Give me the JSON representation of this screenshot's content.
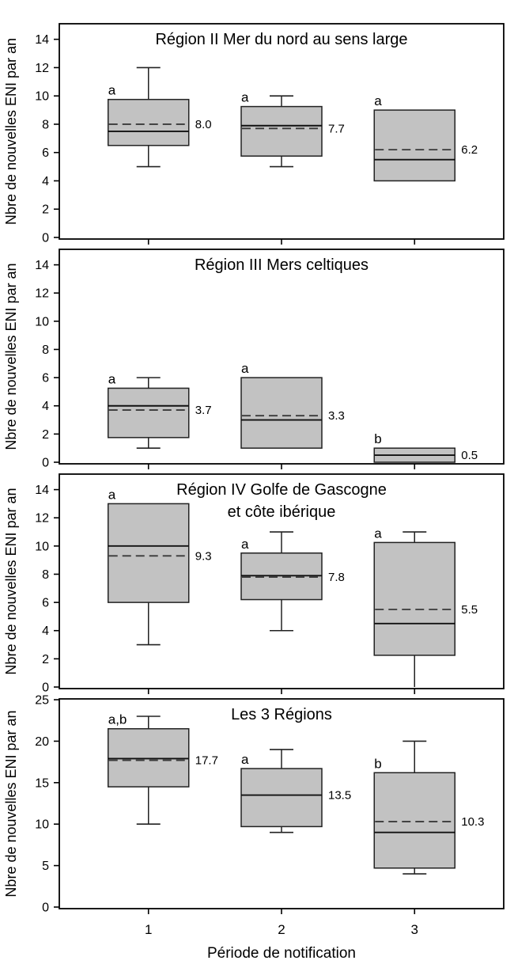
{
  "chart_data": {
    "type": "boxplot",
    "xlabel": "Période de notification",
    "ylabel": "Nbre de nouvelles ENI par an",
    "x_categories": [
      "1",
      "2",
      "3"
    ],
    "legend": "dashed line = mean, solid line = median",
    "style": {
      "background": "#ffffff",
      "box_fill": "#c2c2c2",
      "box_stroke": "#222222",
      "frame": "#000000",
      "median_line": "#111111",
      "mean_line": "#3a3a3a",
      "text": "#000000"
    },
    "panels": [
      {
        "title_lines": [
          "Région II Mer du nord au sens large"
        ],
        "ylim": [
          0,
          15.1
        ],
        "yticks": [
          0,
          2,
          4,
          6,
          8,
          10,
          12,
          14
        ],
        "boxes": [
          {
            "x": 1,
            "letter": "a",
            "whisker_low": 5,
            "q1": 6.5,
            "median": 7.5,
            "q3": 9.75,
            "whisker_high": 12,
            "mean": 8.0,
            "label": "8.0"
          },
          {
            "x": 2,
            "letter": "a",
            "whisker_low": 5,
            "q1": 5.75,
            "median": 7.9,
            "q3": 9.25,
            "whisker_high": 10,
            "mean": 7.7,
            "label": "7.7"
          },
          {
            "x": 3,
            "letter": "a",
            "whisker_low": null,
            "q1": 4,
            "median": 5.5,
            "q3": 9,
            "whisker_high": null,
            "mean": 6.2,
            "label": "6.2"
          }
        ]
      },
      {
        "title_lines": [
          "Région III Mers celtiques"
        ],
        "ylim": [
          0,
          15.1
        ],
        "yticks": [
          0,
          2,
          4,
          6,
          8,
          10,
          12,
          14
        ],
        "boxes": [
          {
            "x": 1,
            "letter": "a",
            "whisker_low": 1,
            "q1": 1.75,
            "median": 4.0,
            "q3": 5.25,
            "whisker_high": 6,
            "mean": 3.7,
            "label": "3.7"
          },
          {
            "x": 2,
            "letter": "a",
            "whisker_low": null,
            "q1": 1,
            "median": 3.0,
            "q3": 6,
            "whisker_high": null,
            "mean": 3.3,
            "label": "3.3"
          },
          {
            "x": 3,
            "letter": "b",
            "whisker_low": null,
            "q1": 0,
            "median": 0.5,
            "q3": 1,
            "whisker_high": null,
            "mean": null,
            "label": "0.5"
          }
        ]
      },
      {
        "title_lines": [
          "Région IV Golfe de Gascogne",
          "et côte ibérique"
        ],
        "ylim": [
          0,
          15.1
        ],
        "yticks": [
          0,
          2,
          4,
          6,
          8,
          10,
          12,
          14
        ],
        "boxes": [
          {
            "x": 1,
            "letter": "a",
            "whisker_low": 3,
            "q1": 6,
            "median": 10,
            "q3": 13,
            "whisker_high": null,
            "mean": 9.3,
            "label": "9.3"
          },
          {
            "x": 2,
            "letter": "a",
            "whisker_low": 4,
            "q1": 6.2,
            "median": 7.9,
            "q3": 9.5,
            "whisker_high": 11,
            "mean": 7.8,
            "label": "7.8"
          },
          {
            "x": 3,
            "letter": "a",
            "whisker_low": 0,
            "q1": 2.25,
            "median": 4.5,
            "q3": 10.25,
            "whisker_high": 11,
            "mean": 5.5,
            "label": "5.5"
          }
        ]
      },
      {
        "title_lines": [
          "Les 3 Régions"
        ],
        "ylim": [
          0,
          25.1
        ],
        "yticks": [
          0,
          5,
          10,
          15,
          20,
          25
        ],
        "boxes": [
          {
            "x": 1,
            "letter": "a,b",
            "whisker_low": 10,
            "q1": 14.5,
            "median": 17.9,
            "q3": 21.5,
            "whisker_high": 23,
            "mean": 17.7,
            "label": "17.7"
          },
          {
            "x": 2,
            "letter": "a",
            "whisker_low": 9,
            "q1": 9.7,
            "median": 13.5,
            "q3": 16.7,
            "whisker_high": 19,
            "mean": null,
            "label": "13.5"
          },
          {
            "x": 3,
            "letter": "b",
            "whisker_low": 4,
            "q1": 4.7,
            "median": 9,
            "q3": 16.2,
            "whisker_high": 20,
            "mean": 10.3,
            "label": "10.3"
          }
        ]
      }
    ]
  }
}
